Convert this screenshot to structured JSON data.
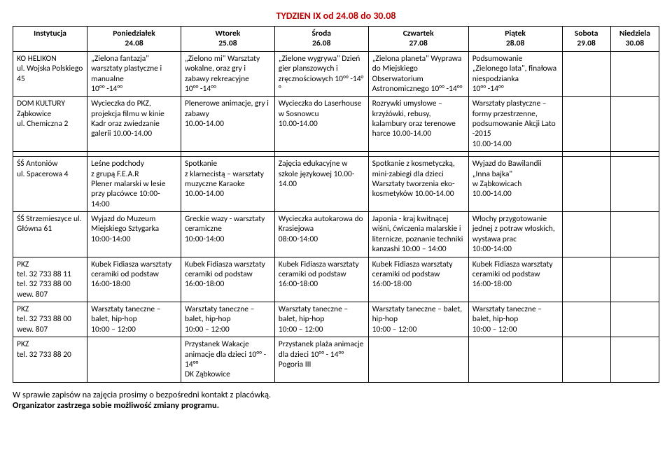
{
  "title": "TYDZIEN IX od 24.08 do 30.08",
  "headers": {
    "inst": "Instytucja",
    "d1a": "Poniedziałek",
    "d1b": "24.08",
    "d2a": "Wtorek",
    "d2b": "25.08",
    "d3a": "Środa",
    "d3b": "26.08",
    "d4a": "Czwartek",
    "d4b": "27.08",
    "d5a": "Piątek",
    "d5b": "28.08",
    "d6a": "Sobota",
    "d6b": "29.08",
    "d7a": "Niedziela",
    "d7b": "30.08"
  },
  "rows": [
    {
      "inst": "KO HELIKON\nul. Wojska Polskiego 45",
      "c1": "„Zielona fantazja\" warsztaty plastyczne i manualne\n10°° -14°°",
      "c2": "„Zielono mi\" Warsztaty wokalne, oraz gry i zabawy rekreacyjne\n10°° -14°°",
      "c3": "„Zielone wygrywa\" Dzień gier planszowych i zręcznościowych 10°° -14°°",
      "c4": "„Zielona planeta\" Wyprawa do Miejskiego Obserwatorium Astronomicznego 10°° -14°°",
      "c5": "Podsumowanie „Zielonego lata\", finałowa niespodzianka\n10°° -14°°",
      "c6": "",
      "c7": ""
    },
    {
      "inst": "DOM KULTURY Ząbkowice\nul. Chemiczna 2",
      "c1": "Wycieczka do PKZ, projekcja filmu w kinie Kadr oraz zwiedzanie galerii 10.00-14.00",
      "c2": "Plenerowe animacje, gry i zabawy\n10.00-14.00",
      "c3": "Wycieczka do Laserhouse\nw Sosnowcu\n10.00-14.00",
      "c4": "Rozrywki umysłowe – krzyżówki, rebusy, kalambury oraz terenowe harce 10.00-14.00",
      "c5": "Warsztaty plastyczne –formy przestrzenne, podsumowanie Akcji Lato -2015\n10.00-14.00",
      "c6": "",
      "c7": ""
    },
    {
      "inst": "ŚŚ Antoniów\nul. Spacerowa 4",
      "c1": "Leśne podchody\nz grupą F.E.A.R\nPlener malarski w lesie przy placówce 10:00-14:00",
      "c2": "Spotkanie\nz klarnecistą – warsztaty muzyczne Karaoke\n10.00-14.00",
      "c3": "Zajęcia edukacyjne w szkole językowej 10.00-14.00",
      "c4": "Spotkanie z kosmetyczką, mini-zabiegi dla dzieci Warsztaty tworzenia eko-kosmetyków 10.00-14.00",
      "c5": "Wyjazd do Bawilandii „Inna bajka\"\nw Ząbkowicach\n10.00-14.00",
      "c6": "",
      "c7": ""
    },
    {
      "inst": "ŚŚ Strzemieszyce ul. Główna 61",
      "c1": "Wyjazd do Muzeum Miejskiego Sztygarka 10:00-14:00",
      "c2": "Greckie wazy - warsztaty ceramiczne\n10:00-14:00",
      "c3": "Wycieczka autokarowa do Krasiejowa\n08:00-14:00",
      "c4": "Japonia - kraj kwitnącej wiśni, ćwiczenia malarskie i liternicze, poznanie techniki kanzashi 10:00 – 14:00",
      "c5": "Włochy przygotowanie jednej z potraw włoskich, wystawa prac\n10:00-14:00",
      "c6": "",
      "c7": ""
    },
    {
      "inst": "PKZ\ntel. 32 733 88 11\ntel. 32 733 88 00\nwew. 807",
      "c1": "Kubek Fidiasza warsztaty ceramiki od podstaw\n16:00-18:00",
      "c2": "Kubek Fidiasza warsztaty ceramiki od podstaw\n16:00-18:00",
      "c3": "Kubek Fidiasza warsztaty ceramiki od podstaw\n16:00-18:00",
      "c4": "Kubek Fidiasza warsztaty ceramiki od podstaw\n16:00-18:00",
      "c5": "Kubek Fidiasza warsztaty ceramiki od podstaw\n16:00-18:00",
      "c6": "",
      "c7": ""
    },
    {
      "inst": "PKZ\ntel. 32 733 88 00\nwew. 807",
      "c1": "Warsztaty taneczne – balet, hip-hop\n10:00 – 12:00",
      "c2": "Warsztaty taneczne – balet, hip-hop\n10:00 – 12:00",
      "c3": "Warsztaty taneczne – balet, hip-hop\n10:00 – 12:00",
      "c4": "Warsztaty taneczne – balet, hip-hop\n10:00 – 12:00",
      "c5": "Warsztaty taneczne – balet, hip-hop\n10:00 – 12:00",
      "c6": "",
      "c7": ""
    },
    {
      "inst": "PKZ\ntel. 32 733 88 20",
      "c1": "",
      "c2": "Przystanek Wakacje animacje dla dzieci 10°° - 14°°\nDK Ząbkowice",
      "c3": "Przystanek plaża animacje dla dzieci 10°° - 14°°\nPogoria III",
      "c4": "",
      "c5": "",
      "c6": "",
      "c7": ""
    }
  ],
  "footer": {
    "line1": "W sprawie zapisów na zajęcia prosimy o bezpośredni kontakt z placówką.",
    "line2": "Organizator zastrzega sobie możliwość zmiany programu."
  }
}
